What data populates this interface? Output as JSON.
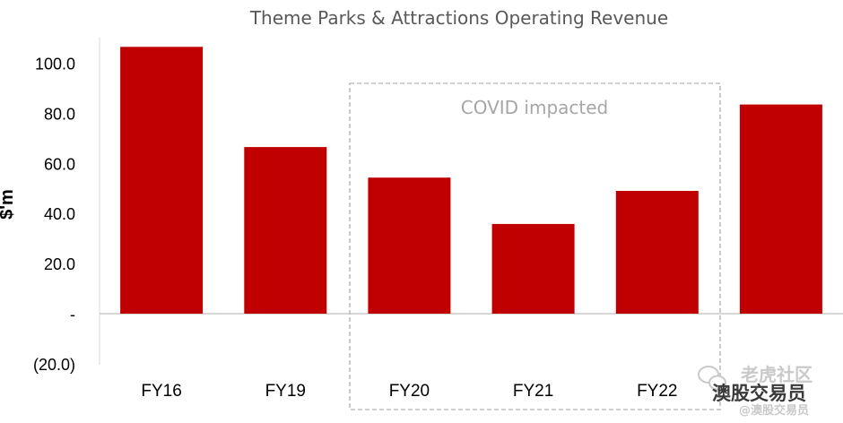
{
  "chart_data": {
    "type": "bar",
    "title": "Theme Parks & Attractions Operating Revenue",
    "xlabel": "",
    "ylabel": "$'m",
    "categories": [
      "FY16",
      "FY19",
      "FY20",
      "FY21",
      "FY22",
      ""
    ],
    "values": [
      106.5,
      66.5,
      54.3,
      35.8,
      49.0,
      83.5
    ],
    "ylim": [
      -20,
      110
    ],
    "yticks": [
      -20,
      0,
      20,
      40,
      60,
      80,
      100
    ],
    "ytick_labels": [
      "(20.0)",
      "-",
      "20.0",
      "40.0",
      "60.0",
      "80.0",
      "100.0"
    ],
    "grid": false,
    "legend": "none",
    "bar_color": "#c00000",
    "annotation": {
      "text": "COVID impacted",
      "spans_categories": [
        "FY20",
        "FY21",
        "FY22"
      ],
      "style": "dashed-box"
    }
  },
  "watermark": {
    "line1": "老虎社区",
    "line2": "澳股交易员",
    "line3": "@澳股交易员"
  }
}
